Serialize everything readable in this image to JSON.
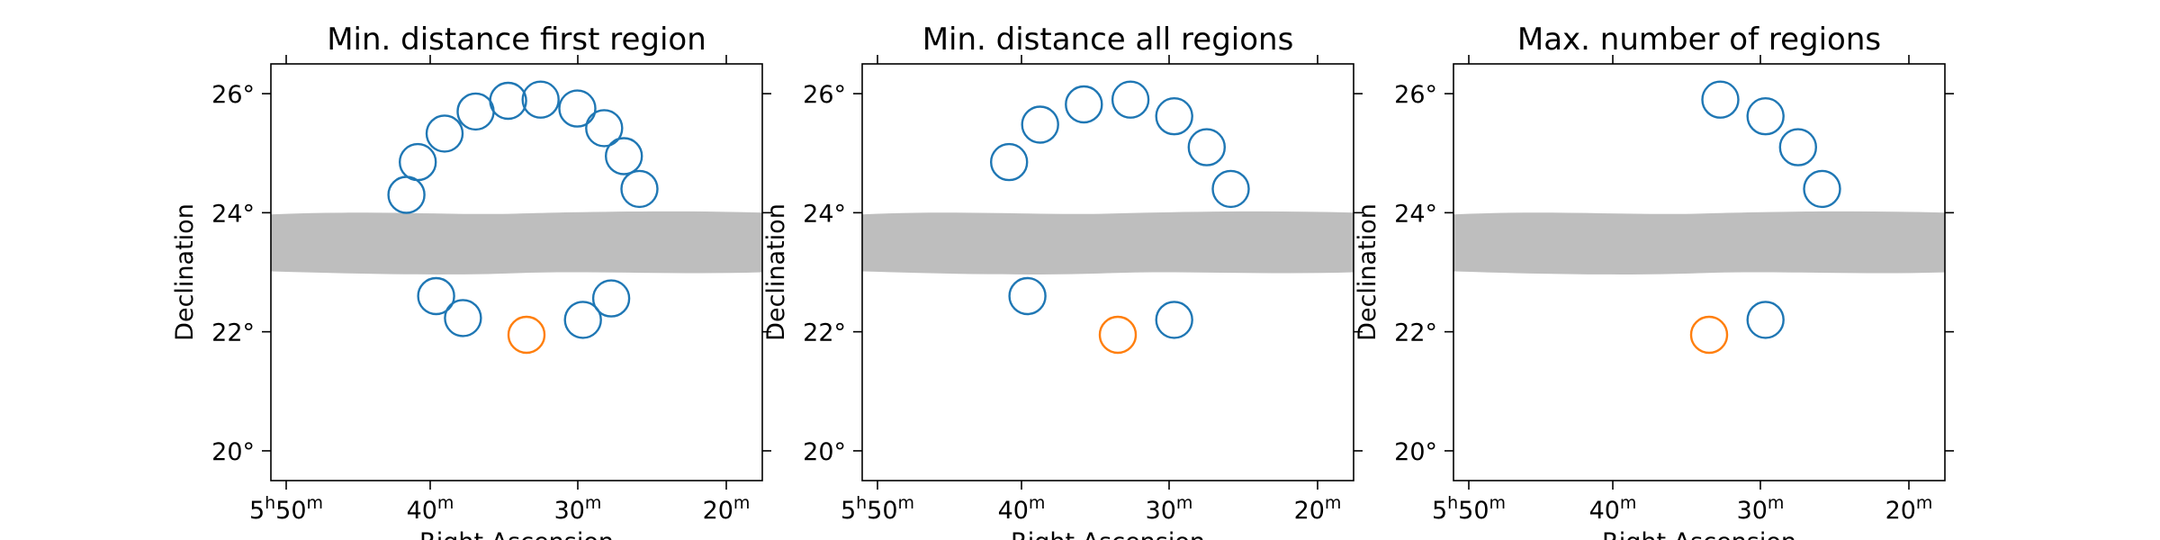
{
  "chart_data": [
    {
      "type": "scatter",
      "title": "Min. distance first region",
      "xlabel": "Right Ascension",
      "ylabel": "Declination",
      "ylim": [
        19.5,
        26.5
      ],
      "ra_min_range": [
        52.6,
        17.8
      ],
      "yticks": [
        "20°",
        "22°",
        "24°",
        "26°"
      ],
      "xticks": [
        {
          "h": "5",
          "m": "50"
        },
        {
          "h": "",
          "m": "40"
        },
        {
          "h": "",
          "m": "30"
        },
        {
          "h": "",
          "m": "20"
        }
      ],
      "exclusion_band": {
        "dec_min": 23.0,
        "dec_max": 24.0,
        "color": "#bebebe"
      },
      "on_region": {
        "ra_min": 34.5,
        "dec": 21.95,
        "color": "#ff7f0e"
      },
      "off_regions": {
        "color": "#1f77b4",
        "points": [
          [
            43.0,
            24.3
          ],
          [
            42.2,
            24.85
          ],
          [
            40.3,
            25.33
          ],
          [
            38.1,
            25.7
          ],
          [
            35.8,
            25.88
          ],
          [
            33.5,
            25.9
          ],
          [
            30.9,
            25.75
          ],
          [
            29.0,
            25.42
          ],
          [
            27.6,
            24.95
          ],
          [
            26.5,
            24.4
          ],
          [
            28.5,
            22.56
          ],
          [
            30.5,
            22.2
          ],
          [
            39.0,
            22.23
          ],
          [
            40.9,
            22.6
          ]
        ]
      }
    },
    {
      "type": "scatter",
      "title": "Min. distance all regions",
      "xlabel": "Right Ascension",
      "ylabel": "Declination",
      "ylim": [
        19.5,
        26.5
      ],
      "ra_min_range": [
        52.6,
        17.8
      ],
      "yticks": [
        "20°",
        "22°",
        "24°",
        "26°"
      ],
      "xticks": [
        {
          "h": "5",
          "m": "50"
        },
        {
          "h": "",
          "m": "40"
        },
        {
          "h": "",
          "m": "30"
        },
        {
          "h": "",
          "m": "20"
        }
      ],
      "exclusion_band": {
        "dec_min": 23.0,
        "dec_max": 24.0,
        "color": "#bebebe"
      },
      "on_region": {
        "ra_min": 34.5,
        "dec": 21.95,
        "color": "#ff7f0e"
      },
      "off_regions": {
        "color": "#1f77b4",
        "points": [
          [
            42.2,
            24.85
          ],
          [
            40.0,
            25.48
          ],
          [
            36.9,
            25.82
          ],
          [
            33.6,
            25.9
          ],
          [
            30.5,
            25.62
          ],
          [
            28.2,
            25.1
          ],
          [
            26.5,
            24.4
          ],
          [
            30.5,
            22.2
          ],
          [
            40.9,
            22.6
          ]
        ]
      }
    },
    {
      "type": "scatter",
      "title": "Max. number of regions",
      "xlabel": "Right Ascension",
      "ylabel": "Declination",
      "ylim": [
        19.5,
        26.5
      ],
      "ra_min_range": [
        52.6,
        17.8
      ],
      "yticks": [
        "20°",
        "22°",
        "24°",
        "26°"
      ],
      "xticks": [
        {
          "h": "5",
          "m": "50"
        },
        {
          "h": "",
          "m": "40"
        },
        {
          "h": "",
          "m": "30"
        },
        {
          "h": "",
          "m": "20"
        }
      ],
      "exclusion_band": {
        "dec_min": 23.0,
        "dec_max": 24.0,
        "color": "#bebebe"
      },
      "on_region": {
        "ra_min": 34.5,
        "dec": 21.95,
        "color": "#ff7f0e"
      },
      "off_regions": {
        "color": "#1f77b4",
        "points": [
          [
            33.7,
            25.9
          ],
          [
            30.5,
            25.62
          ],
          [
            28.2,
            25.1
          ],
          [
            26.5,
            24.4
          ],
          [
            30.5,
            22.2
          ]
        ]
      }
    }
  ]
}
